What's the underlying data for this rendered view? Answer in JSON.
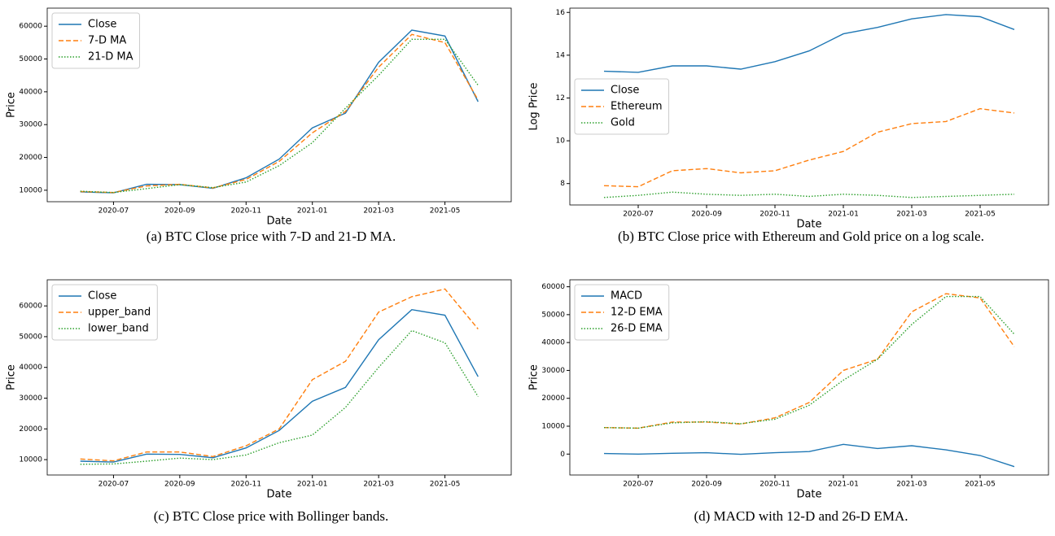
{
  "chart_data": [
    {
      "type": "line",
      "caption": "(a) BTC Close price with 7-D and 21-D MA.",
      "xlabel": "Date",
      "ylabel": "Price",
      "x": [
        "2020-06",
        "2020-07",
        "2020-08",
        "2020-09",
        "2020-10",
        "2020-11",
        "2020-12",
        "2021-01",
        "2021-02",
        "2021-03",
        "2021-04",
        "2021-05",
        "2021-06"
      ],
      "series": [
        {
          "name": "Close",
          "color": "#1f77b4",
          "linestyle": "solid",
          "values": [
            9500,
            9200,
            11800,
            11700,
            10600,
            13800,
            19500,
            29000,
            33500,
            49000,
            58800,
            57000,
            37000
          ]
        },
        {
          "name": "7-D MA",
          "color": "#ff7f0e",
          "linestyle": "dashed",
          "values": [
            9600,
            9300,
            11300,
            11800,
            10700,
            13300,
            18800,
            27500,
            34000,
            47500,
            57500,
            55000,
            37500
          ]
        },
        {
          "name": "21-D MA",
          "color": "#2ca02c",
          "linestyle": "dotted",
          "values": [
            9700,
            9300,
            10500,
            11700,
            10800,
            12500,
            17500,
            24500,
            35000,
            45000,
            56000,
            56000,
            42000
          ]
        }
      ],
      "xlim": [
        "2020-05",
        "2021-07"
      ],
      "ylim": [
        6500,
        65500
      ],
      "xticks": [
        "2020-07",
        "2020-09",
        "2020-11",
        "2021-01",
        "2021-03",
        "2021-05"
      ],
      "yticks": [
        10000,
        20000,
        30000,
        40000,
        50000,
        60000
      ],
      "legend": "upper left"
    },
    {
      "type": "line",
      "caption": "(b) BTC Close price with Ethereum and Gold price on a log scale.",
      "xlabel": "Date",
      "ylabel": "Log Price",
      "x": [
        "2020-06",
        "2020-07",
        "2020-08",
        "2020-09",
        "2020-10",
        "2020-11",
        "2020-12",
        "2021-01",
        "2021-02",
        "2021-03",
        "2021-04",
        "2021-05",
        "2021-06"
      ],
      "series": [
        {
          "name": "Close",
          "color": "#1f77b4",
          "linestyle": "solid",
          "values": [
            13.25,
            13.2,
            13.5,
            13.5,
            13.35,
            13.7,
            14.2,
            15.0,
            15.3,
            15.7,
            15.9,
            15.8,
            15.2
          ]
        },
        {
          "name": "Ethereum",
          "color": "#ff7f0e",
          "linestyle": "dashed",
          "values": [
            7.9,
            7.85,
            8.6,
            8.7,
            8.5,
            8.6,
            9.1,
            9.5,
            10.4,
            10.8,
            10.9,
            11.5,
            11.3
          ]
        },
        {
          "name": "Gold",
          "color": "#2ca02c",
          "linestyle": "dotted",
          "values": [
            7.35,
            7.45,
            7.6,
            7.5,
            7.45,
            7.5,
            7.4,
            7.5,
            7.45,
            7.35,
            7.4,
            7.45,
            7.5
          ]
        }
      ],
      "xlim": [
        "2020-05",
        "2021-07"
      ],
      "ylim": [
        7.0,
        16.2
      ],
      "xticks": [
        "2020-07",
        "2020-09",
        "2020-11",
        "2021-01",
        "2021-03",
        "2021-05"
      ],
      "yticks": [
        8,
        10,
        12,
        14,
        16
      ],
      "legend": "center left"
    },
    {
      "type": "line",
      "caption": "(c) BTC Close price with Bollinger bands.",
      "xlabel": "Date",
      "ylabel": "Price",
      "x": [
        "2020-06",
        "2020-07",
        "2020-08",
        "2020-09",
        "2020-10",
        "2020-11",
        "2020-12",
        "2021-01",
        "2021-02",
        "2021-03",
        "2021-04",
        "2021-05",
        "2021-06"
      ],
      "series": [
        {
          "name": "Close",
          "color": "#1f77b4",
          "linestyle": "solid",
          "values": [
            9500,
            9200,
            11800,
            11700,
            10600,
            13800,
            19500,
            29000,
            33500,
            49000,
            58800,
            57000,
            37000
          ]
        },
        {
          "name": "upper_band",
          "color": "#ff7f0e",
          "linestyle": "dashed",
          "values": [
            10200,
            9600,
            12500,
            12500,
            11000,
            14500,
            20000,
            36000,
            42000,
            58000,
            63000,
            65500,
            52500
          ]
        },
        {
          "name": "lower_band",
          "color": "#2ca02c",
          "linestyle": "dotted",
          "values": [
            8500,
            8600,
            9500,
            10500,
            10000,
            11500,
            15500,
            18000,
            27000,
            40000,
            52000,
            48000,
            30500
          ]
        }
      ],
      "xlim": [
        "2020-05",
        "2021-07"
      ],
      "ylim": [
        5000,
        68500
      ],
      "xticks": [
        "2020-07",
        "2020-09",
        "2020-11",
        "2021-01",
        "2021-03",
        "2021-05"
      ],
      "yticks": [
        10000,
        20000,
        30000,
        40000,
        50000,
        60000
      ],
      "legend": "upper left"
    },
    {
      "type": "line",
      "caption": "(d) MACD with 12-D and 26-D EMA.",
      "xlabel": "Date",
      "ylabel": "Price",
      "x": [
        "2020-06",
        "2020-07",
        "2020-08",
        "2020-09",
        "2020-10",
        "2020-11",
        "2020-12",
        "2021-01",
        "2021-02",
        "2021-03",
        "2021-04",
        "2021-05",
        "2021-06"
      ],
      "series": [
        {
          "name": "MACD",
          "color": "#1f77b4",
          "linestyle": "solid",
          "values": [
            200,
            0,
            300,
            500,
            -100,
            500,
            900,
            3500,
            2000,
            3000,
            1500,
            -500,
            -4500
          ]
        },
        {
          "name": "12-D EMA",
          "color": "#ff7f0e",
          "linestyle": "dashed",
          "values": [
            9500,
            9300,
            11500,
            11500,
            10800,
            13000,
            18500,
            30000,
            34000,
            51000,
            57500,
            56000,
            38500
          ]
        },
        {
          "name": "26-D EMA",
          "color": "#2ca02c",
          "linestyle": "dotted",
          "values": [
            9500,
            9300,
            11200,
            11600,
            10900,
            12500,
            17500,
            26500,
            34000,
            46500,
            56500,
            56500,
            43000
          ]
        }
      ],
      "xlim": [
        "2020-05",
        "2021-07"
      ],
      "ylim": [
        -7500,
        62500
      ],
      "xticks": [
        "2020-07",
        "2020-09",
        "2020-11",
        "2021-01",
        "2021-03",
        "2021-05"
      ],
      "yticks": [
        0,
        10000,
        20000,
        30000,
        40000,
        50000,
        60000
      ],
      "legend": "upper left"
    }
  ]
}
